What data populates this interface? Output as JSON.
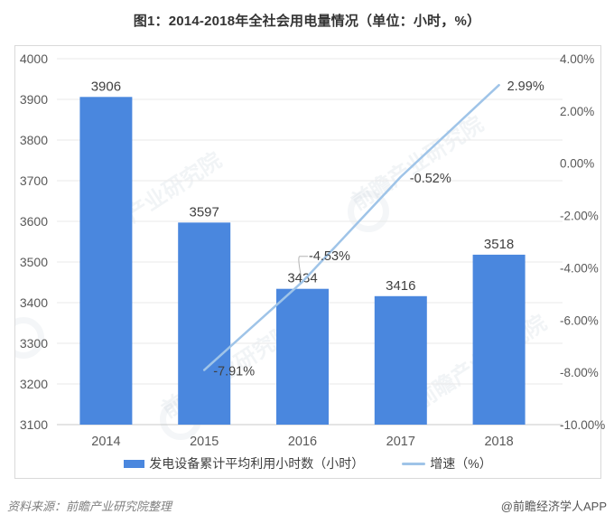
{
  "page": {
    "title": "图1：2014-2018年全社会用电量情况（单位：小时，%）",
    "footer_left": "资料来源：前瞻产业研究院整理",
    "footer_right": "@前瞻经济学人APP",
    "watermark_text": "前瞻产业研究院"
  },
  "legend": {
    "bars_label": "发电设备累计平均利用小时数（小时）",
    "line_label": "增速（%）"
  },
  "colors": {
    "bar": "#4a87de",
    "line": "#9fc4e8",
    "grid": "#e9e9e9",
    "axis_line": "#c9c9c9",
    "tick_label": "#595959",
    "data_label": "#404040",
    "leader": "#b3b3b3"
  },
  "chart_data": {
    "type": "bar",
    "subtype": "bar+line dual axis",
    "title": "图1：2014-2018年全社会用电量情况（单位：小时，%）",
    "categories": [
      "2014",
      "2015",
      "2016",
      "2017",
      "2018"
    ],
    "series": [
      {
        "name": "发电设备累计平均利用小时数（小时）",
        "type": "bar",
        "axis": "left",
        "values": [
          3906,
          3597,
          3434,
          3416,
          3518
        ],
        "labels": [
          "3906",
          "3597",
          "3434",
          "3416",
          "3518"
        ]
      },
      {
        "name": "增速（%）",
        "type": "line",
        "axis": "right",
        "values": [
          null,
          -7.91,
          -4.53,
          -0.52,
          2.99
        ],
        "labels": [
          null,
          "-7.91%",
          "-4.53%",
          "-0.52%",
          "2.99%"
        ]
      }
    ],
    "left_axis": {
      "min": 3100,
      "max": 4000,
      "step": 100,
      "tick_labels": [
        "4000",
        "3900",
        "3800",
        "3700",
        "3600",
        "3500",
        "3400",
        "3300",
        "3200",
        "3100"
      ]
    },
    "right_axis": {
      "min": -10,
      "max": 4,
      "step": 2,
      "tick_labels": [
        "4.00%",
        "2.00%",
        "0.00%",
        "-2.00%",
        "-4.00%",
        "-6.00%",
        "-8.00%",
        "-10.00%"
      ]
    },
    "grid": true,
    "legend_position": "bottom"
  }
}
